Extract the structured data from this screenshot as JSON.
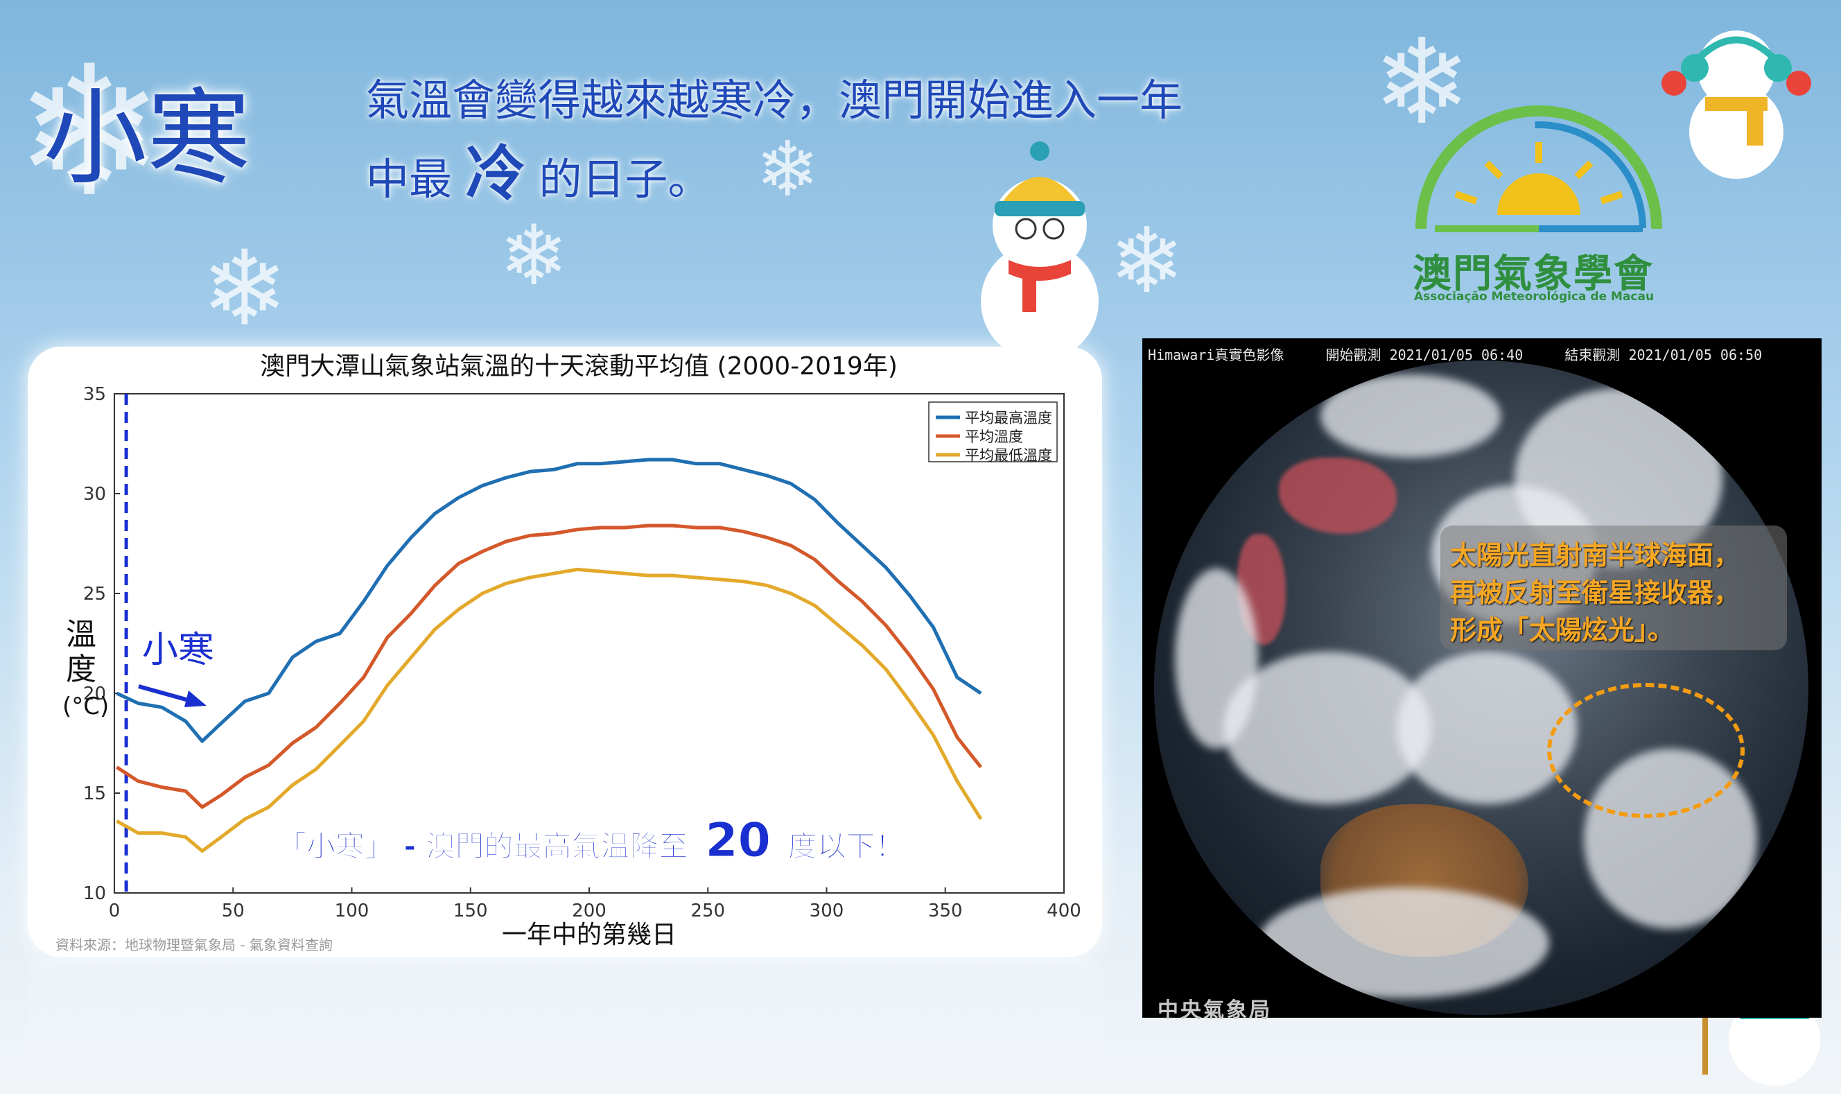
{
  "header": {
    "title": "小寒",
    "line1": "氣溫會變得越來越寒冷，澳門開始進入一年",
    "line2_pre": "中最",
    "line2_em": "冷",
    "line2_post": "的日子。"
  },
  "logo": {
    "name": "澳門氣象學會",
    "subtitle": "Associação Meteorológica de Macau",
    "colors": {
      "arc_green": "#6cc04a",
      "arc_blue": "#2a8ec9",
      "sun": "#f2c21b"
    }
  },
  "chart_data": {
    "type": "line",
    "title": "澳門大潭山氣象站氣溫的十天滾動平均值 (2000-2019年)",
    "xlabel": "一年中的第幾日",
    "ylabel_chars": [
      "溫",
      "度"
    ],
    "ylabel_unit": "(°C)",
    "xlim": [
      0,
      400
    ],
    "ylim": [
      10,
      35
    ],
    "xticks": [
      0,
      50,
      100,
      150,
      200,
      250,
      300,
      350,
      400
    ],
    "yticks": [
      10,
      15,
      20,
      25,
      30,
      35
    ],
    "legend_position": "top-right",
    "x": [
      1,
      10,
      20,
      30,
      37,
      45,
      55,
      65,
      75,
      85,
      95,
      105,
      115,
      125,
      135,
      145,
      155,
      165,
      175,
      185,
      195,
      205,
      215,
      225,
      235,
      245,
      255,
      265,
      275,
      285,
      295,
      305,
      315,
      325,
      335,
      345,
      355,
      365
    ],
    "series": [
      {
        "name": "平均最高溫度",
        "color": "#1f6fb2",
        "values": [
          20.0,
          19.5,
          19.3,
          18.6,
          17.6,
          18.5,
          19.6,
          20.0,
          21.8,
          22.6,
          23.0,
          24.6,
          26.4,
          27.8,
          29.0,
          29.8,
          30.4,
          30.8,
          31.1,
          31.2,
          31.5,
          31.5,
          31.6,
          31.7,
          31.7,
          31.5,
          31.5,
          31.2,
          30.9,
          30.5,
          29.7,
          28.5,
          27.4,
          26.3,
          24.9,
          23.3,
          20.8,
          20.0
        ]
      },
      {
        "name": "平均溫度",
        "color": "#d4582a",
        "values": [
          16.3,
          15.6,
          15.3,
          15.1,
          14.3,
          14.9,
          15.8,
          16.4,
          17.5,
          18.3,
          19.5,
          20.8,
          22.8,
          24.0,
          25.4,
          26.5,
          27.1,
          27.6,
          27.9,
          28.0,
          28.2,
          28.3,
          28.3,
          28.4,
          28.4,
          28.3,
          28.3,
          28.1,
          27.8,
          27.4,
          26.7,
          25.6,
          24.6,
          23.4,
          21.9,
          20.2,
          17.8,
          16.3
        ]
      },
      {
        "name": "平均最低溫度",
        "color": "#e3a92b",
        "values": [
          13.6,
          13.0,
          13.0,
          12.8,
          12.1,
          12.8,
          13.7,
          14.3,
          15.4,
          16.2,
          17.4,
          18.6,
          20.4,
          21.8,
          23.2,
          24.2,
          25.0,
          25.5,
          25.8,
          26.0,
          26.2,
          26.1,
          26.0,
          25.9,
          25.9,
          25.8,
          25.7,
          25.6,
          25.4,
          25.0,
          24.4,
          23.4,
          22.4,
          21.2,
          19.6,
          17.9,
          15.6,
          13.7
        ]
      }
    ],
    "marker_day": 5,
    "annotations": {
      "xiaohan_label": "小寒",
      "bottom_pre": "「小寒」 -  澳門的最高氣溫降至",
      "bottom_num": "20",
      "bottom_post": "度以下！"
    },
    "source": "資料來源：地球物理暨氣象局 - 氣象資料查詢"
  },
  "satellite": {
    "header": "Himawari真實色影像     開始觀測 2021/01/05 06:40     結束觀測 2021/01/05 06:50",
    "footer": "中央氣象局",
    "note_line1": "太陽光直射南半球海面，",
    "note_line2": "再被反射至衛星接收器，",
    "note_line3": "形成「太陽炫光」。"
  }
}
